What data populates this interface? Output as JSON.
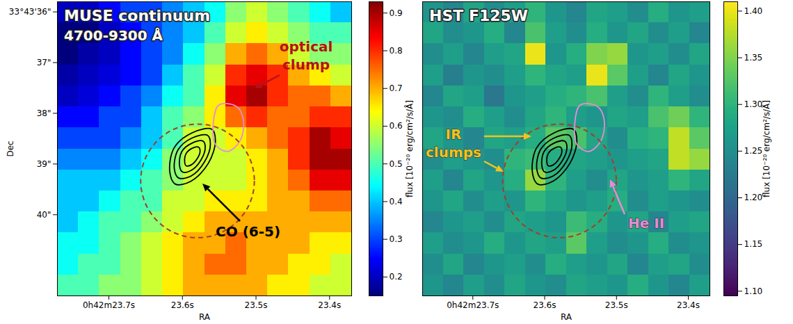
{
  "chart_data": [
    {
      "type": "heatmap",
      "title": "MUSE continuum",
      "subtitle": "4700-9300 Å",
      "x_label": "RA",
      "y_label": "Dec",
      "xlim": [
        23.77,
        23.37
      ],
      "ylim": [
        41.6,
        35.8
      ],
      "xticks": [
        {
          "value": 23.7,
          "label": "0h42m23.7s"
        },
        {
          "value": 23.6,
          "label": "23.6s"
        },
        {
          "value": 23.5,
          "label": "23.5s"
        },
        {
          "value": 23.4,
          "label": "23.4s"
        }
      ],
      "yticks": [
        {
          "value": 36,
          "label": "33°43'36\""
        },
        {
          "value": 37,
          "label": "37\""
        },
        {
          "value": 38,
          "label": "38\""
        },
        {
          "value": 39,
          "label": "39\""
        },
        {
          "value": 40,
          "label": "40\""
        }
      ],
      "color": "jet",
      "cells": [
        [
          0.2,
          0.2,
          0.25,
          0.3,
          0.3,
          0.35,
          0.4,
          0.45,
          0.55,
          0.6,
          0.55,
          0.5,
          0.45,
          0.4
        ],
        [
          0.15,
          0.15,
          0.2,
          0.25,
          0.3,
          0.35,
          0.4,
          0.5,
          0.6,
          0.65,
          0.6,
          0.55,
          0.5,
          0.5
        ],
        [
          0.15,
          0.18,
          0.2,
          0.25,
          0.3,
          0.35,
          0.45,
          0.55,
          0.7,
          0.75,
          0.7,
          0.6,
          0.55,
          0.55
        ],
        [
          0.18,
          0.2,
          0.22,
          0.25,
          0.3,
          0.4,
          0.5,
          0.6,
          0.8,
          0.85,
          0.8,
          0.7,
          0.65,
          0.6
        ],
        [
          0.2,
          0.22,
          0.25,
          0.3,
          0.35,
          0.45,
          0.5,
          0.65,
          0.85,
          0.9,
          0.8,
          0.75,
          0.75,
          0.7
        ],
        [
          0.25,
          0.25,
          0.3,
          0.3,
          0.4,
          0.5,
          0.55,
          0.65,
          0.75,
          0.8,
          0.75,
          0.75,
          0.8,
          0.8
        ],
        [
          0.3,
          0.3,
          0.3,
          0.35,
          0.4,
          0.5,
          0.6,
          0.6,
          0.65,
          0.7,
          0.75,
          0.8,
          0.9,
          0.85
        ],
        [
          0.35,
          0.35,
          0.35,
          0.4,
          0.45,
          0.55,
          0.6,
          0.6,
          0.6,
          0.65,
          0.7,
          0.8,
          0.9,
          0.9
        ],
        [
          0.4,
          0.4,
          0.4,
          0.45,
          0.5,
          0.55,
          0.6,
          0.6,
          0.6,
          0.65,
          0.7,
          0.75,
          0.85,
          0.85
        ],
        [
          0.4,
          0.4,
          0.45,
          0.5,
          0.5,
          0.6,
          0.6,
          0.65,
          0.65,
          0.65,
          0.7,
          0.7,
          0.75,
          0.75
        ],
        [
          0.4,
          0.45,
          0.5,
          0.5,
          0.55,
          0.6,
          0.65,
          0.7,
          0.7,
          0.7,
          0.7,
          0.7,
          0.7,
          0.7
        ],
        [
          0.45,
          0.45,
          0.5,
          0.55,
          0.6,
          0.65,
          0.7,
          0.7,
          0.75,
          0.7,
          0.7,
          0.7,
          0.65,
          0.65
        ],
        [
          0.45,
          0.5,
          0.5,
          0.55,
          0.6,
          0.65,
          0.7,
          0.75,
          0.75,
          0.7,
          0.7,
          0.65,
          0.65,
          0.6
        ],
        [
          0.5,
          0.5,
          0.55,
          0.55,
          0.6,
          0.65,
          0.7,
          0.7,
          0.7,
          0.7,
          0.65,
          0.65,
          0.6,
          0.6
        ]
      ],
      "colorbar": {
        "label": "flux [10⁻²⁰ erg/cm²/s/Å]",
        "lim": [
          0.15,
          0.93
        ],
        "ticks": [
          0.2,
          0.3,
          0.4,
          0.5,
          0.6,
          0.7,
          0.8,
          0.9
        ]
      },
      "contours": [
        {
          "name": "CO (6-5)",
          "color": "#000000",
          "rings": [
            [
              [
                23.56,
                38.315
              ],
              [
                23.5552,
                38.548
              ],
              [
                23.5648,
                38.986
              ],
              [
                23.5886,
                39.342
              ],
              [
                23.6095,
                39.397
              ],
              [
                23.6171,
                39.164
              ],
              [
                23.6114,
                38.685
              ],
              [
                23.5867,
                38.384
              ]
            ],
            [
              [
                23.566,
                38.433
              ],
              [
                23.562,
                38.614
              ],
              [
                23.57,
                38.956
              ],
              [
                23.588,
                39.234
              ],
              [
                23.605,
                39.277
              ],
              [
                23.611,
                39.095
              ],
              [
                23.606,
                38.721
              ],
              [
                23.587,
                38.487
              ]
            ],
            [
              [
                23.572,
                38.55
              ],
              [
                23.569,
                38.681
              ],
              [
                23.575,
                38.926
              ],
              [
                23.588,
                39.126
              ],
              [
                23.6,
                39.156
              ],
              [
                23.604,
                39.026
              ],
              [
                23.601,
                38.758
              ],
              [
                23.587,
                38.589
              ]
            ],
            [
              [
                23.578,
                38.668
              ],
              [
                23.576,
                38.747
              ],
              [
                23.58,
                38.896
              ],
              [
                23.588,
                39.017
              ],
              [
                23.595,
                39.036
              ],
              [
                23.597,
                38.957
              ],
              [
                23.595,
                38.794
              ],
              [
                23.587,
                38.692
              ]
            ]
          ]
        },
        {
          "name": "He II",
          "color": "#e88ad8",
          "rings": [
            [
              [
                23.5505,
                37.836
              ],
              [
                23.5267,
                37.863
              ],
              [
                23.5171,
                38.137
              ],
              [
                23.5219,
                38.548
              ],
              [
                23.539,
                38.753
              ],
              [
                23.5552,
                38.616
              ],
              [
                23.5581,
                38.205
              ]
            ]
          ]
        }
      ],
      "circle": {
        "ra": 23.579,
        "dec": 39.34,
        "radius": 1.12,
        "color": "#a0402a",
        "line_style": "dashed"
      },
      "annotations": [
        {
          "lines": [
            "optical",
            "clump"
          ],
          "color": "#b5121b"
        },
        {
          "lines": [
            "CO (6-5)"
          ],
          "color": "#000000"
        }
      ]
    },
    {
      "type": "heatmap",
      "title": "HST F125W",
      "x_label": "RA",
      "tick_labels": "x",
      "xlim": [
        23.77,
        23.37
      ],
      "ylim": [
        41.6,
        35.8
      ],
      "xticks": [
        {
          "value": 23.7,
          "label": "0h42m23.7s"
        },
        {
          "value": 23.6,
          "label": "23.6s"
        },
        {
          "value": 23.5,
          "label": "23.5s"
        },
        {
          "value": 23.4,
          "label": "23.4s"
        }
      ],
      "color": "viridis",
      "cells": [
        [
          1.26,
          1.24,
          1.28,
          1.25,
          1.27,
          1.3,
          1.26,
          1.24,
          1.28,
          1.27,
          1.25,
          1.29,
          1.26,
          1.27
        ],
        [
          1.28,
          1.25,
          1.26,
          1.29,
          1.24,
          1.32,
          1.27,
          1.25,
          1.29,
          1.26,
          1.28,
          1.25,
          1.27,
          1.24
        ],
        [
          1.25,
          1.27,
          1.24,
          1.27,
          1.28,
          1.4,
          1.26,
          1.29,
          1.35,
          1.36,
          1.26,
          1.27,
          1.25,
          1.28
        ],
        [
          1.27,
          1.23,
          1.26,
          1.25,
          1.27,
          1.3,
          1.28,
          1.27,
          1.4,
          1.33,
          1.27,
          1.24,
          1.28,
          1.26
        ],
        [
          1.24,
          1.28,
          1.27,
          1.22,
          1.26,
          1.27,
          1.29,
          1.3,
          1.32,
          1.27,
          1.25,
          1.3,
          1.27,
          1.25
        ],
        [
          1.26,
          1.25,
          1.29,
          1.27,
          1.25,
          1.28,
          1.3,
          1.27,
          1.26,
          1.28,
          1.27,
          1.32,
          1.34,
          1.3
        ],
        [
          1.28,
          1.26,
          1.24,
          1.28,
          1.27,
          1.29,
          1.33,
          1.32,
          1.28,
          1.25,
          1.29,
          1.3,
          1.38,
          1.33
        ],
        [
          1.25,
          1.27,
          1.26,
          1.25,
          1.3,
          1.31,
          1.29,
          1.28,
          1.27,
          1.26,
          1.27,
          1.28,
          1.38,
          1.36
        ],
        [
          1.27,
          1.24,
          1.28,
          1.26,
          1.29,
          1.36,
          1.3,
          1.27,
          1.25,
          1.28,
          1.26,
          1.27,
          1.3,
          1.28
        ],
        [
          1.26,
          1.28,
          1.25,
          1.27,
          1.26,
          1.3,
          1.28,
          1.26,
          1.27,
          1.29,
          1.25,
          1.27,
          1.26,
          1.25
        ],
        [
          1.24,
          1.26,
          1.27,
          1.25,
          1.28,
          1.27,
          1.26,
          1.31,
          1.29,
          1.26,
          1.28,
          1.24,
          1.27,
          1.28
        ],
        [
          1.27,
          1.25,
          1.26,
          1.29,
          1.26,
          1.28,
          1.27,
          1.33,
          1.27,
          1.25,
          1.26,
          1.29,
          1.25,
          1.26
        ],
        [
          1.25,
          1.28,
          1.24,
          1.26,
          1.27,
          1.25,
          1.29,
          1.27,
          1.26,
          1.28,
          1.24,
          1.27,
          1.28,
          1.25
        ],
        [
          1.26,
          1.24,
          1.27,
          1.25,
          1.28,
          1.26,
          1.25,
          1.28,
          1.27,
          1.26,
          1.29,
          1.26,
          1.24,
          1.27
        ]
      ],
      "colorbar": {
        "label": "flux [10⁻²⁰ erg/cm²/s/Å]",
        "lim": [
          1.095,
          1.41
        ],
        "ticks": [
          {
            "value": 1.1,
            "label": "1.10"
          },
          1.15,
          {
            "value": 1.2,
            "label": "1.20"
          },
          1.25,
          {
            "value": 1.3,
            "label": "1.30"
          },
          1.35,
          {
            "value": 1.4,
            "label": "1.40"
          }
        ]
      },
      "contours": [
        {
          "name": "CO (6-5)",
          "color": "#000000",
          "rings": [
            [
              [
                23.56,
                38.315
              ],
              [
                23.5552,
                38.548
              ],
              [
                23.5648,
                38.986
              ],
              [
                23.5886,
                39.342
              ],
              [
                23.6095,
                39.397
              ],
              [
                23.6171,
                39.164
              ],
              [
                23.6114,
                38.685
              ],
              [
                23.5867,
                38.384
              ]
            ],
            [
              [
                23.566,
                38.433
              ],
              [
                23.562,
                38.614
              ],
              [
                23.57,
                38.956
              ],
              [
                23.588,
                39.234
              ],
              [
                23.605,
                39.277
              ],
              [
                23.611,
                39.095
              ],
              [
                23.606,
                38.721
              ],
              [
                23.587,
                38.487
              ]
            ],
            [
              [
                23.572,
                38.55
              ],
              [
                23.569,
                38.681
              ],
              [
                23.575,
                38.926
              ],
              [
                23.588,
                39.126
              ],
              [
                23.6,
                39.156
              ],
              [
                23.604,
                39.026
              ],
              [
                23.601,
                38.758
              ],
              [
                23.587,
                38.589
              ]
            ],
            [
              [
                23.578,
                38.668
              ],
              [
                23.576,
                38.747
              ],
              [
                23.58,
                38.896
              ],
              [
                23.588,
                39.017
              ],
              [
                23.595,
                39.036
              ],
              [
                23.597,
                38.957
              ],
              [
                23.595,
                38.794
              ],
              [
                23.587,
                38.692
              ]
            ]
          ]
        },
        {
          "name": "He II",
          "color": "#e88ad8",
          "rings": [
            [
              [
                23.5505,
                37.836
              ],
              [
                23.5267,
                37.863
              ],
              [
                23.5171,
                38.137
              ],
              [
                23.5219,
                38.548
              ],
              [
                23.539,
                38.753
              ],
              [
                23.5552,
                38.616
              ],
              [
                23.5581,
                38.205
              ]
            ]
          ]
        }
      ],
      "circle": {
        "ra": 23.579,
        "dec": 39.34,
        "radius": 1.12,
        "color": "#a0402a",
        "line_style": "dashed"
      },
      "annotations": [
        {
          "lines": [
            "IR",
            "clumps"
          ],
          "color": "#f2c31c"
        },
        {
          "lines": [
            "He II"
          ],
          "color": "#e88ad8"
        }
      ]
    }
  ]
}
